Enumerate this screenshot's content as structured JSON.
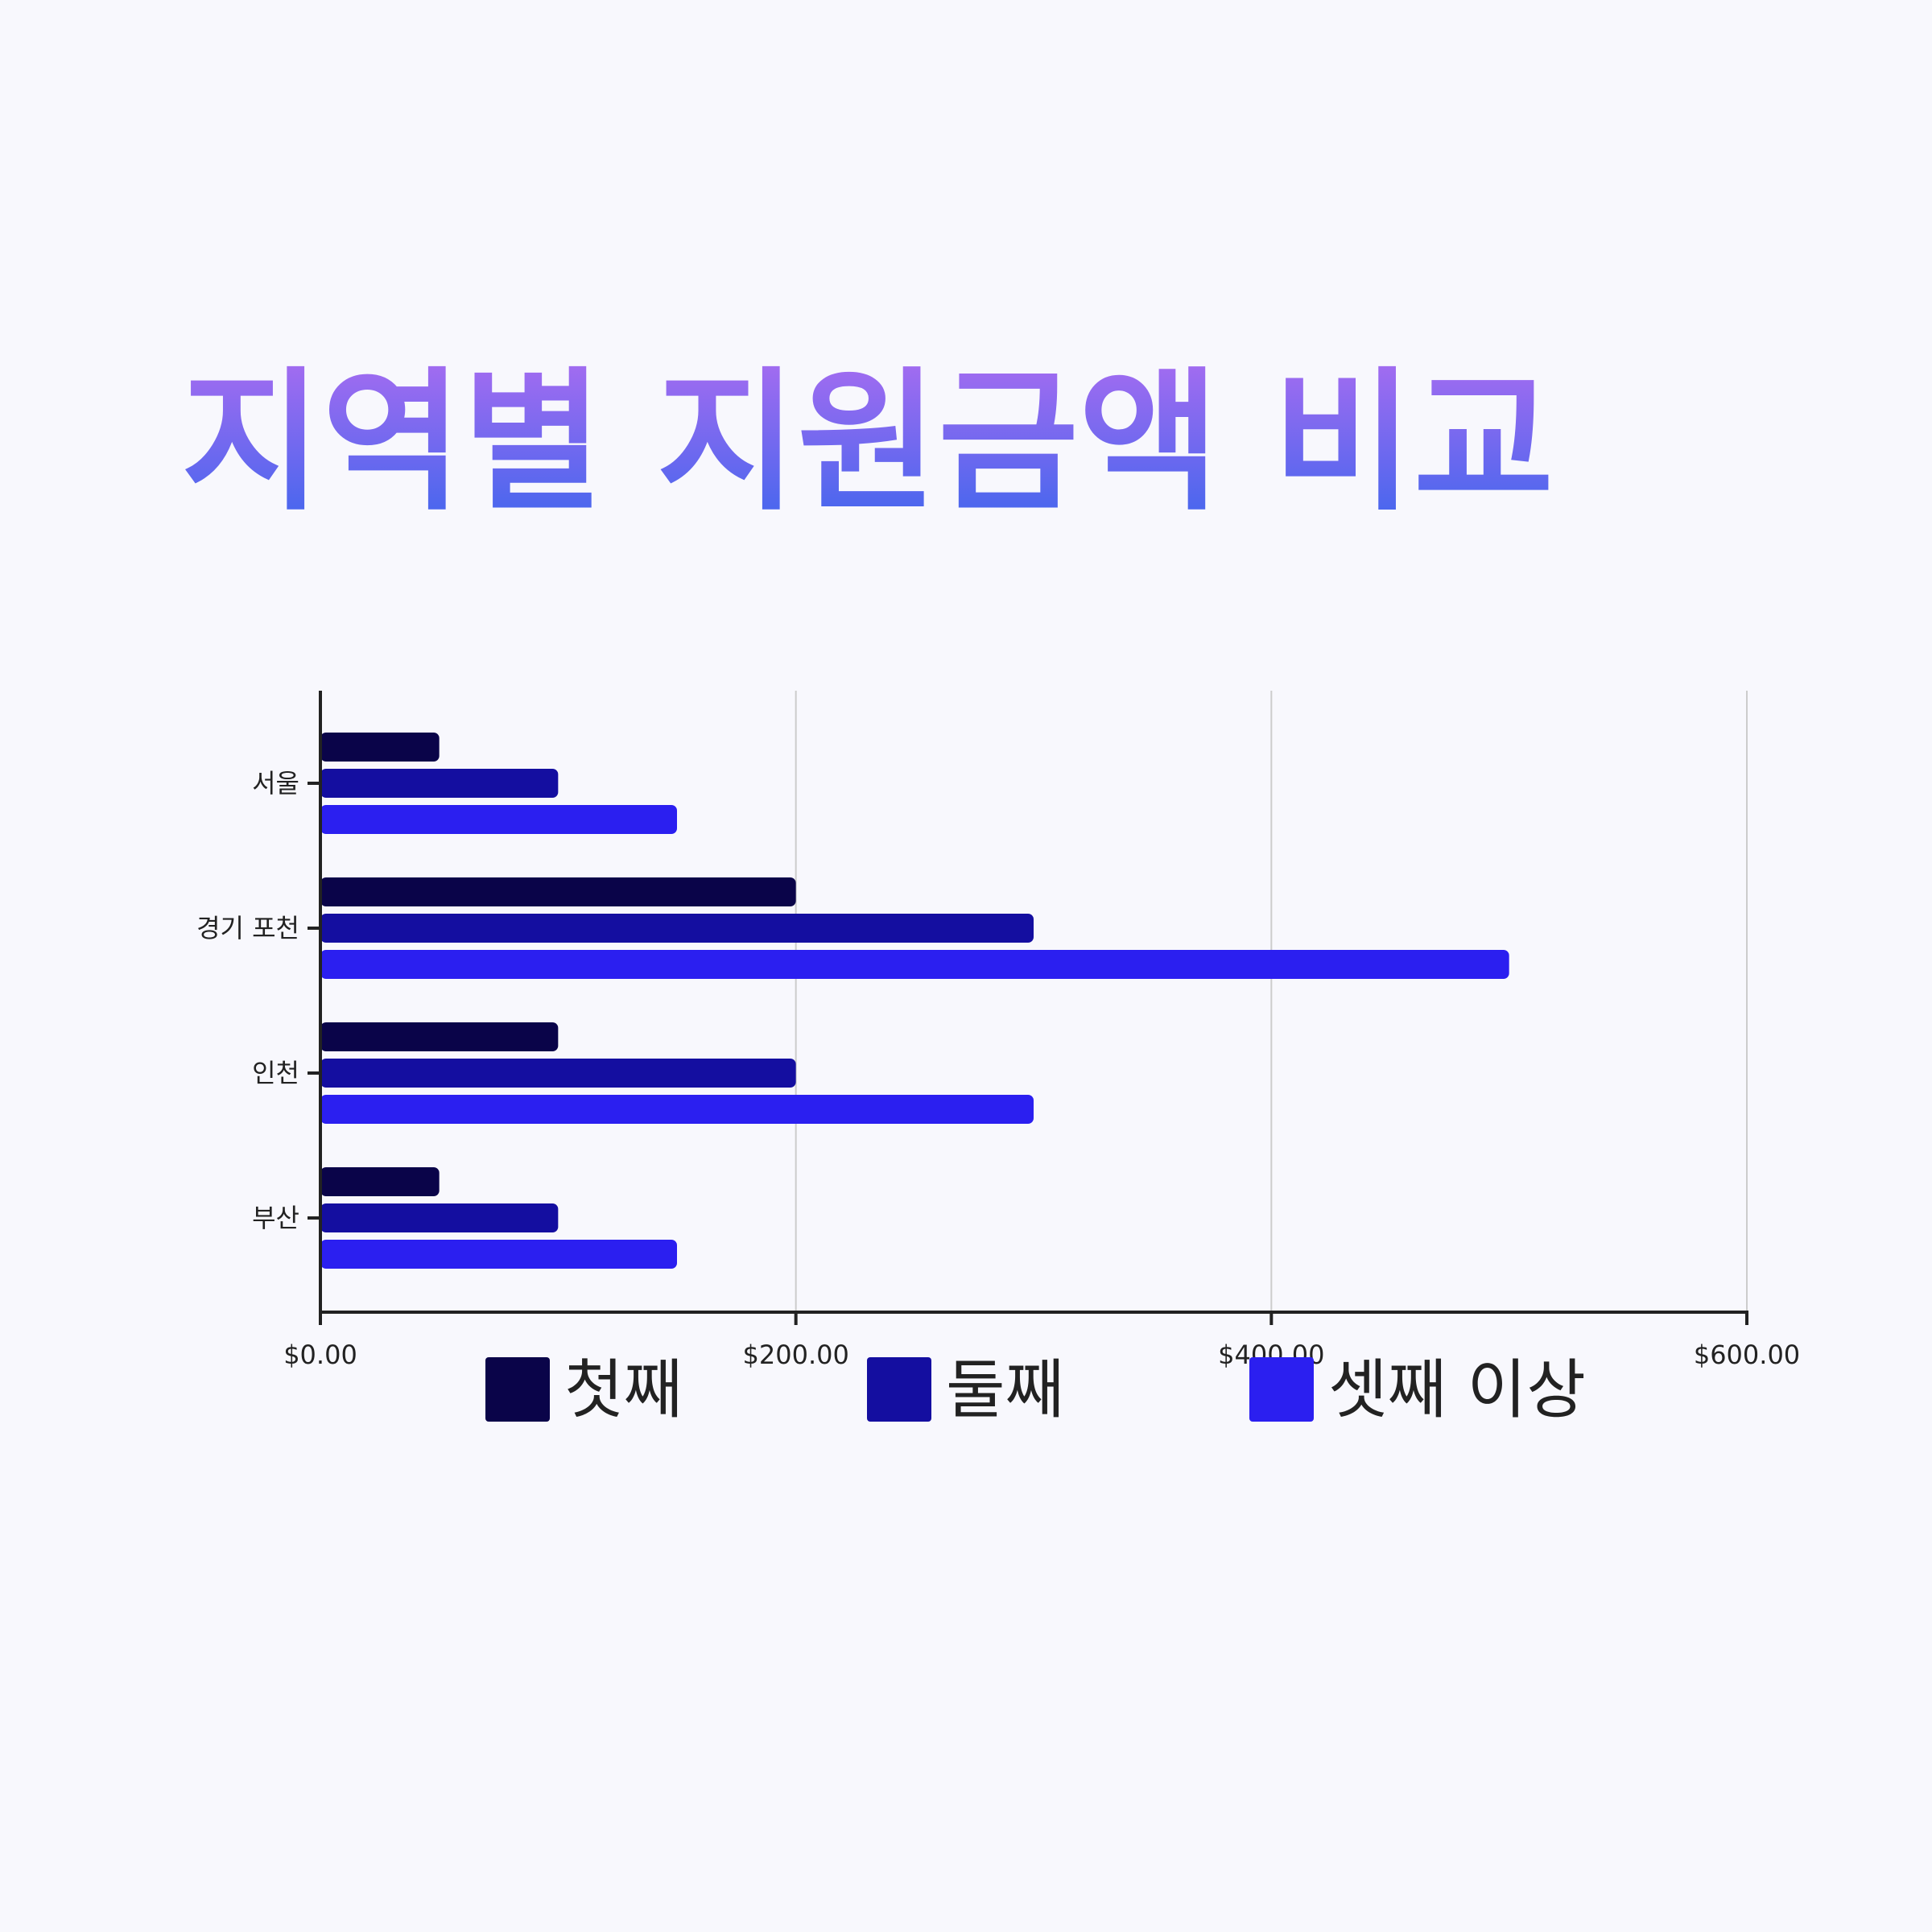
{
  "colors": {
    "background": "#f8f8fd",
    "title_gradient_top": "#a86cf0",
    "title_gradient_bottom": "#3f66ee",
    "series": [
      "#0a0449",
      "#140ea0",
      "#2b1ff0"
    ],
    "axis": "#222222",
    "grid": "#cccccc"
  },
  "chart_data": {
    "type": "bar",
    "orientation": "horizontal",
    "title": "지역별 지원금액 비교",
    "categories": [
      "서울",
      "경기 포천",
      "인천",
      "부산"
    ],
    "series": [
      {
        "name": "첫째",
        "values": [
          50,
          200,
          100,
          50
        ]
      },
      {
        "name": "둘째",
        "values": [
          100,
          300,
          200,
          100
        ]
      },
      {
        "name": "셋째 이상",
        "values": [
          150,
          500,
          300,
          150
        ]
      }
    ],
    "xlim": [
      0,
      600
    ],
    "xticks": [
      0,
      200,
      400,
      600
    ],
    "xtick_labels": [
      "$0.00",
      "$200.00",
      "$400.00",
      "$600.00"
    ],
    "xlabel": "",
    "ylabel": "",
    "grid": "vertical",
    "legend_position": "bottom"
  }
}
